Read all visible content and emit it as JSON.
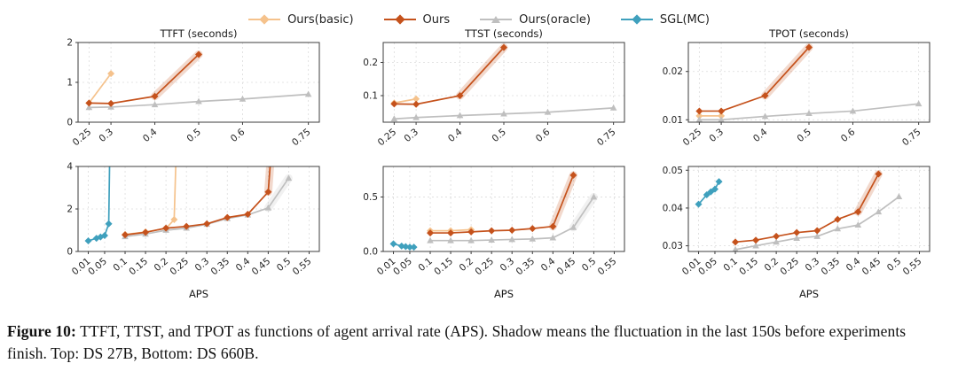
{
  "legend": {
    "items": [
      {
        "label": "Ours(basic)",
        "color": "#f5c28c",
        "marker": "diamond"
      },
      {
        "label": "Ours",
        "color": "#c5521c",
        "marker": "diamond"
      },
      {
        "label": "Ours(oracle)",
        "color": "#bfbfbf",
        "marker": "triangle"
      },
      {
        "label": "SGL(MC)",
        "color": "#3fa0bd",
        "marker": "diamond"
      }
    ]
  },
  "caption": {
    "label": "Figure 10:",
    "text": " TTFT, TTST, and TPOT as functions of agent arrival rate (APS). Shadow means the fluctuation in the last 150s before experiments finish. Top: DS 27B, Bottom: DS 660B."
  },
  "chart_data": [
    {
      "type": "line",
      "title": "TTFT (seconds)",
      "xlabel": "",
      "ylabel": "",
      "xlim": [
        0.225,
        0.775
      ],
      "ylim": [
        0,
        2
      ],
      "grid": true,
      "legend_position": "top-center",
      "xticks": [
        0.25,
        0.3,
        0.4,
        0.5,
        0.6,
        0.75
      ],
      "xtick_labels": [
        "0.25",
        "0.3",
        "0.4",
        "0.5",
        "0.6",
        "0.75"
      ],
      "yticks": [
        0,
        1,
        2
      ],
      "ytick_labels": [
        "0",
        "1",
        "2"
      ],
      "series": [
        {
          "name": "Ours(basic)",
          "shadow": false,
          "x": [
            0.25,
            0.3
          ],
          "y": [
            0.48,
            1.22
          ]
        },
        {
          "name": "Ours(oracle)",
          "shadow": false,
          "x": [
            0.25,
            0.3,
            0.4,
            0.5,
            0.6,
            0.75
          ],
          "y": [
            0.37,
            0.38,
            0.44,
            0.52,
            0.58,
            0.7
          ]
        },
        {
          "name": "Ours",
          "shadow": true,
          "x": [
            0.25,
            0.3,
            0.4,
            0.5
          ],
          "y": [
            0.48,
            0.47,
            0.65,
            1.7
          ]
        }
      ]
    },
    {
      "type": "line",
      "title": "TTST (seconds)",
      "xlabel": "",
      "ylabel": "",
      "xlim": [
        0.225,
        0.775
      ],
      "ylim": [
        0.02,
        0.26
      ],
      "grid": true,
      "xticks": [
        0.25,
        0.3,
        0.4,
        0.5,
        0.6,
        0.75
      ],
      "xtick_labels": [
        "0.25",
        "0.3",
        "0.4",
        "0.5",
        "0.6",
        "0.75"
      ],
      "yticks": [
        0.1,
        0.2
      ],
      "ytick_labels": [
        "0.1",
        "0.2"
      ],
      "series": [
        {
          "name": "Ours(basic)",
          "shadow": false,
          "x": [
            0.25,
            0.3
          ],
          "y": [
            0.078,
            0.09
          ]
        },
        {
          "name": "Ours(oracle)",
          "shadow": false,
          "x": [
            0.25,
            0.3,
            0.4,
            0.5,
            0.6,
            0.75
          ],
          "y": [
            0.03,
            0.034,
            0.04,
            0.045,
            0.05,
            0.063
          ]
        },
        {
          "name": "Ours",
          "shadow": true,
          "x": [
            0.25,
            0.3,
            0.4,
            0.5
          ],
          "y": [
            0.075,
            0.074,
            0.1,
            0.245
          ]
        }
      ]
    },
    {
      "type": "line",
      "title": "TPOT (seconds)",
      "xlabel": "",
      "ylabel": "",
      "xlim": [
        0.225,
        0.775
      ],
      "ylim": [
        0.0095,
        0.026
      ],
      "grid": true,
      "xticks": [
        0.25,
        0.3,
        0.4,
        0.5,
        0.6,
        0.75
      ],
      "xtick_labels": [
        "0.25",
        "0.3",
        "0.4",
        "0.5",
        "0.6",
        "0.75"
      ],
      "yticks": [
        0.01,
        0.02
      ],
      "ytick_labels": [
        "0.01",
        "0.02"
      ],
      "series": [
        {
          "name": "Ours(basic)",
          "shadow": false,
          "x": [
            0.25,
            0.3
          ],
          "y": [
            0.0108,
            0.0108
          ]
        },
        {
          "name": "Ours(oracle)",
          "shadow": false,
          "x": [
            0.25,
            0.3,
            0.4,
            0.5,
            0.6,
            0.75
          ],
          "y": [
            0.01,
            0.01,
            0.0107,
            0.0113,
            0.0118,
            0.0133
          ]
        },
        {
          "name": "Ours",
          "shadow": true,
          "x": [
            0.25,
            0.3,
            0.4,
            0.5
          ],
          "y": [
            0.0118,
            0.0118,
            0.015,
            0.025
          ]
        }
      ]
    },
    {
      "type": "line",
      "title": "",
      "xlabel": "APS",
      "ylabel": "",
      "xlim": [
        -0.015,
        0.575
      ],
      "ylim": [
        0,
        4
      ],
      "grid": true,
      "xticks": [
        0.01,
        0.05,
        0.1,
        0.15,
        0.2,
        0.25,
        0.3,
        0.35,
        0.4,
        0.45,
        0.5,
        0.55
      ],
      "xtick_labels": [
        "0.01",
        "0.05",
        "0.1",
        "0.15",
        "0.2",
        "0.25",
        "0.3",
        "0.35",
        "0.4",
        "0.45",
        "0.5",
        "0.55"
      ],
      "yticks": [
        0,
        2,
        4
      ],
      "ytick_labels": [
        "0",
        "2",
        "4"
      ],
      "series": [
        {
          "name": "Ours(basic)",
          "shadow": false,
          "x": [
            0.1,
            0.15,
            0.2,
            0.22,
            0.23
          ],
          "y": [
            0.8,
            0.92,
            1.08,
            1.5,
            8
          ]
        },
        {
          "name": "Ours(oracle)",
          "shadow": true,
          "x": [
            0.1,
            0.15,
            0.2,
            0.25,
            0.3,
            0.35,
            0.4,
            0.45,
            0.5
          ],
          "y": [
            0.7,
            0.82,
            1.0,
            1.1,
            1.28,
            1.55,
            1.72,
            2.05,
            3.45
          ]
        },
        {
          "name": "SGL(MC)",
          "shadow": false,
          "x": [
            0.01,
            0.03,
            0.04,
            0.05,
            0.06,
            0.065
          ],
          "y": [
            0.5,
            0.62,
            0.68,
            0.75,
            1.3,
            8
          ]
        },
        {
          "name": "Ours",
          "shadow": true,
          "x": [
            0.1,
            0.15,
            0.2,
            0.25,
            0.3,
            0.35,
            0.4,
            0.45,
            0.47
          ],
          "y": [
            0.78,
            0.9,
            1.1,
            1.18,
            1.3,
            1.6,
            1.75,
            2.8,
            8
          ]
        }
      ]
    },
    {
      "type": "line",
      "title": "",
      "xlabel": "APS",
      "ylabel": "",
      "xlim": [
        -0.015,
        0.575
      ],
      "ylim": [
        0,
        0.78
      ],
      "grid": true,
      "xticks": [
        0.01,
        0.05,
        0.1,
        0.15,
        0.2,
        0.25,
        0.3,
        0.35,
        0.4,
        0.45,
        0.5,
        0.55
      ],
      "xtick_labels": [
        "0.01",
        "0.05",
        "0.1",
        "0.15",
        "0.2",
        "0.25",
        "0.3",
        "0.35",
        "0.4",
        "0.45",
        "0.5",
        "0.55"
      ],
      "yticks": [
        0.0,
        0.5
      ],
      "ytick_labels": [
        "0.0",
        "0.5"
      ],
      "series": [
        {
          "name": "Ours(basic)",
          "shadow": false,
          "x": [
            0.1,
            0.15,
            0.2
          ],
          "y": [
            0.19,
            0.19,
            0.2
          ]
        },
        {
          "name": "Ours(oracle)",
          "shadow": true,
          "x": [
            0.1,
            0.15,
            0.2,
            0.25,
            0.3,
            0.35,
            0.4,
            0.45,
            0.5
          ],
          "y": [
            0.1,
            0.1,
            0.1,
            0.105,
            0.11,
            0.115,
            0.125,
            0.22,
            0.5
          ]
        },
        {
          "name": "SGL(MC)",
          "shadow": false,
          "x": [
            0.01,
            0.03,
            0.04,
            0.05,
            0.06
          ],
          "y": [
            0.07,
            0.05,
            0.045,
            0.04,
            0.04
          ]
        },
        {
          "name": "Ours",
          "shadow": true,
          "x": [
            0.1,
            0.15,
            0.2,
            0.25,
            0.3,
            0.35,
            0.4,
            0.45
          ],
          "y": [
            0.17,
            0.17,
            0.18,
            0.19,
            0.195,
            0.21,
            0.23,
            0.7
          ]
        }
      ]
    },
    {
      "type": "line",
      "title": "",
      "xlabel": "APS",
      "ylabel": "",
      "xlim": [
        -0.015,
        0.575
      ],
      "ylim": [
        0.0285,
        0.051
      ],
      "grid": true,
      "xticks": [
        0.01,
        0.05,
        0.1,
        0.15,
        0.2,
        0.25,
        0.3,
        0.35,
        0.4,
        0.45,
        0.5,
        0.55
      ],
      "xtick_labels": [
        "0.01",
        "0.05",
        "0.1",
        "0.15",
        "0.2",
        "0.25",
        "0.3",
        "0.35",
        "0.4",
        "0.45",
        "0.5",
        "0.55"
      ],
      "yticks": [
        0.03,
        0.04,
        0.05
      ],
      "ytick_labels": [
        "0.03",
        "0.04",
        "0.05"
      ],
      "series": [
        {
          "name": "Ours(oracle)",
          "shadow": false,
          "x": [
            0.1,
            0.15,
            0.2,
            0.25,
            0.3,
            0.35,
            0.4,
            0.45,
            0.5
          ],
          "y": [
            0.029,
            0.03,
            0.031,
            0.032,
            0.0325,
            0.0345,
            0.0355,
            0.039,
            0.043
          ]
        },
        {
          "name": "SGL(MC)",
          "shadow": false,
          "x": [
            0.01,
            0.03,
            0.04,
            0.05,
            0.06
          ],
          "y": [
            0.041,
            0.0435,
            0.0443,
            0.045,
            0.047
          ]
        },
        {
          "name": "Ours",
          "shadow": true,
          "x": [
            0.1,
            0.15,
            0.2,
            0.25,
            0.3,
            0.35,
            0.4,
            0.45
          ],
          "y": [
            0.031,
            0.0315,
            0.0325,
            0.0335,
            0.034,
            0.037,
            0.039,
            0.049
          ]
        }
      ]
    }
  ]
}
